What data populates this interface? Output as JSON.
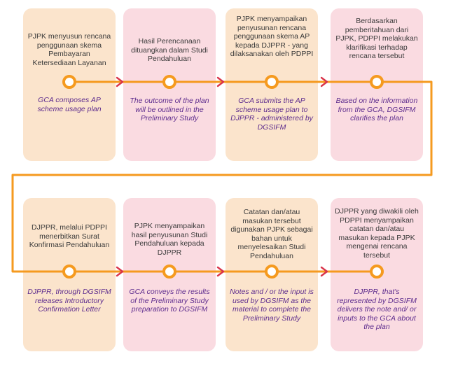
{
  "colors": {
    "line": "#f59a1f",
    "arrow": "#d9344a",
    "node_fill": "#ffffff",
    "card_peach": "#fbe4cc",
    "card_pink": "#fadbe1",
    "id_text": "#3a3a3a",
    "en_text": "#5e2d8e"
  },
  "steps_row1": [
    {
      "id_text": "PJPK menyusun rencana penggunaan skema Pembayaran Ketersediaan Layanan",
      "en_text": "GCA composes AP scheme usage plan"
    },
    {
      "id_text": "Hasil Perencanaan dituangkan dalam Studi Pendahuluan",
      "en_text": "The outcome of the plan will be outlined in the Preliminary Study"
    },
    {
      "id_text": "PJPK menyampaikan penyusunan rencana penggunaan skema AP kepada DJPPR - yang dilaksanakan oleh PDPPI",
      "en_text": "GCA submits the AP scheme usage plan to DJPPR - administered by DGSIFM"
    },
    {
      "id_text": "Berdasarkan pemberitahuan dari PJPK, PDPPI melakukan klarifikasi terhadap rencana tersebut",
      "en_text": "Based on the information from the GCA, DGSIFM clarifies the plan"
    }
  ],
  "steps_row2": [
    {
      "id_text": "DJPPR, melalui PDPPI menerbitkan Surat Konfirmasi Pendahuluan",
      "en_text": "DJPPR, through DGSIFM releases Introductory Confirmation Letter"
    },
    {
      "id_text": "PJPK menyampaikan hasil penyusunan Studi Pendahuluan kepada DJPPR",
      "en_text": "GCA conveys the results of the Preliminary Study preparation to DGSIFM"
    },
    {
      "id_text": "Catatan dan/atau masukan tersebut digunakan PJPK sebagai bahan untuk menyelesaikan Studi Pendahuluan",
      "en_text": "Notes and / or the input is used by DGSIFM as the material to complete the Preliminary Study"
    },
    {
      "id_text": "DJPPR yang diwakili oleh PDPPI menyampaikan catatan dan/atau masukan kepada PJPK mengenai rencana tersebut",
      "en_text": "DJPPR, that's represented by DGSIFM delivers the note and/ or inputs to the GCA about the plan"
    }
  ]
}
